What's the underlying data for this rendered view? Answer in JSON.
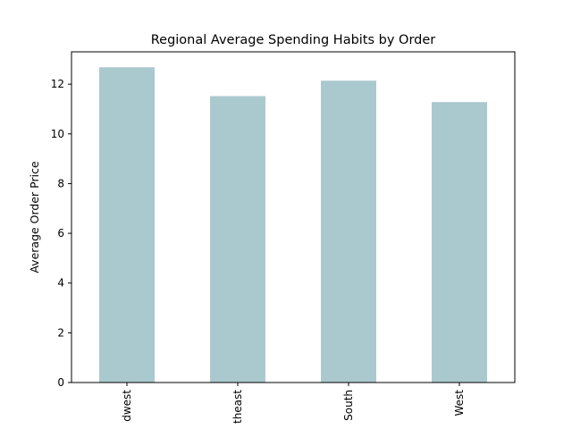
{
  "chart_data": {
    "type": "bar",
    "title": "Regional Average Spending Habits by Order",
    "xlabel": "",
    "ylabel": "Average Order Price",
    "categories": [
      "Midwest",
      "Northeast",
      "South",
      "West"
    ],
    "tick_labels_shown": [
      "dwest",
      "theast",
      "South",
      "West"
    ],
    "values": [
      12.68,
      11.52,
      12.14,
      11.28
    ],
    "ylim": [
      0,
      13.3
    ],
    "yticks": [
      0,
      2,
      4,
      6,
      8,
      10,
      12
    ],
    "bar_color": "#aac9ce",
    "grid": false,
    "legend": "none"
  }
}
